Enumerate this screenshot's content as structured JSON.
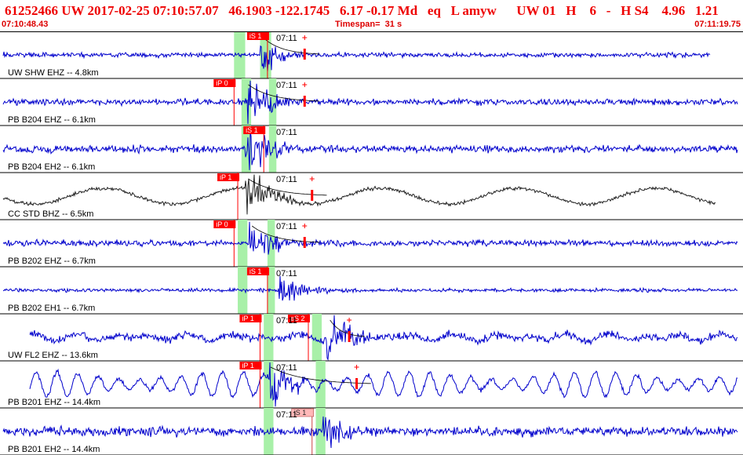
{
  "header": {
    "title": "61252466 UW 2017-02-25 07:10:57.07   46.1903 -122.1745   6.17 -0.17 Md   eq   L amyw      UW 01   H    6   -   H S4    4.96   1.21",
    "start_time": "07:10:48.43",
    "timespan": "Timespan=  31 s",
    "end_time": "07:11:19.75"
  },
  "colors": {
    "trace_blue": "#0000cc",
    "trace_black": "#222222",
    "pick_red": "#ff0000",
    "pick_light": "#ffb8b8",
    "window_green": "#a8f0a8",
    "border": "#000000",
    "header_red": "#ee0000"
  },
  "panels": [
    {
      "label": "UW SHW EHZ -- 4.8km",
      "time_label": "07:11",
      "color": "blue",
      "amp": 4,
      "noise_type": "hf",
      "onset": 0.35,
      "burst_amp": 16,
      "green": [
        [
          0.315,
          0.33
        ],
        [
          0.35,
          0.365
        ]
      ],
      "picks": [
        {
          "text": "iS 1",
          "pos": 0.36,
          "style": "solid"
        }
      ],
      "coda": 0.41
    },
    {
      "label": "PB B204 EHZ -- 6.1km",
      "time_label": "07:11",
      "color": "blue",
      "amp": 5,
      "noise_type": "hf",
      "onset": 0.33,
      "burst_amp": 22,
      "green": [
        [
          0.325,
          0.338
        ],
        [
          0.362,
          0.372
        ]
      ],
      "picks": [
        {
          "text": "iP 0",
          "pos": 0.315,
          "style": "solid"
        }
      ],
      "coda": 0.41
    },
    {
      "label": "PB B204 EH2 -- 6.1km",
      "time_label": "07:11",
      "color": "blue",
      "amp": 6,
      "noise_type": "hf",
      "onset": 0.33,
      "burst_amp": 22,
      "green": [
        [
          0.325,
          0.338
        ],
        [
          0.362,
          0.372
        ]
      ],
      "picks": [
        {
          "text": "iS 1",
          "pos": 0.355,
          "style": "solid"
        }
      ],
      "coda": null
    },
    {
      "label": "CC STD BHZ -- 6.5km",
      "time_label": "07:11",
      "color": "black",
      "amp": 10,
      "noise_type": "lf",
      "onset": 0.33,
      "burst_amp": 26,
      "green": [],
      "picks": [
        {
          "text": "iP 1",
          "pos": 0.32,
          "style": "solid"
        }
      ],
      "coda": 0.42
    },
    {
      "label": "PB B202 EHZ -- 6.7km",
      "time_label": "07:11",
      "color": "blue",
      "amp": 5,
      "noise_type": "hf",
      "onset": 0.335,
      "burst_amp": 22,
      "green": [
        [
          0.32,
          0.333
        ],
        [
          0.36,
          0.37
        ]
      ],
      "picks": [
        {
          "text": "iP 0",
          "pos": 0.315,
          "style": "solid"
        }
      ],
      "coda": 0.41
    },
    {
      "label": "PB B202 EH1 -- 6.7km",
      "time_label": "07:11",
      "color": "blue",
      "amp": 3,
      "noise_type": "hf",
      "onset": 0.375,
      "burst_amp": 14,
      "green": [
        [
          0.32,
          0.333
        ],
        [
          0.36,
          0.37
        ]
      ],
      "picks": [
        {
          "text": "iS 1",
          "pos": 0.36,
          "style": "solid"
        }
      ],
      "coda": null
    },
    {
      "label": "UW FL2 EHZ -- 13.6km",
      "time_label": "07:11",
      "color": "blue",
      "amp": 10,
      "noise_type": "mf",
      "onset": 0.44,
      "burst_amp": 22,
      "green": [
        [
          0.355,
          0.368
        ],
        [
          0.42,
          0.433
        ]
      ],
      "picks": [
        {
          "text": "iP 1",
          "pos": 0.35,
          "style": "solid"
        },
        {
          "text": "eS 2",
          "pos": 0.415,
          "style": "solid"
        }
      ],
      "coda": 0.47
    },
    {
      "label": "PB B201 EHZ -- 14.4km",
      "time_label": "07:11",
      "color": "blue",
      "amp": 16,
      "noise_type": "mid",
      "onset": 0.36,
      "burst_amp": 20,
      "green": [
        [
          0.355,
          0.368
        ],
        [
          0.425,
          0.438
        ]
      ],
      "picks": [
        {
          "text": "iP 1",
          "pos": 0.35,
          "style": "solid"
        }
      ],
      "coda": 0.48
    },
    {
      "label": "PB B201 EH2 -- 14.4km",
      "time_label": "07:11",
      "color": "blue",
      "amp": 8,
      "noise_type": "hf",
      "onset": 0.435,
      "burst_amp": 20,
      "green": [
        [
          0.355,
          0.368
        ],
        [
          0.425,
          0.438
        ]
      ],
      "picks": [
        {
          "text": "iS 1",
          "pos": 0.42,
          "style": "light"
        }
      ],
      "coda": null
    }
  ]
}
